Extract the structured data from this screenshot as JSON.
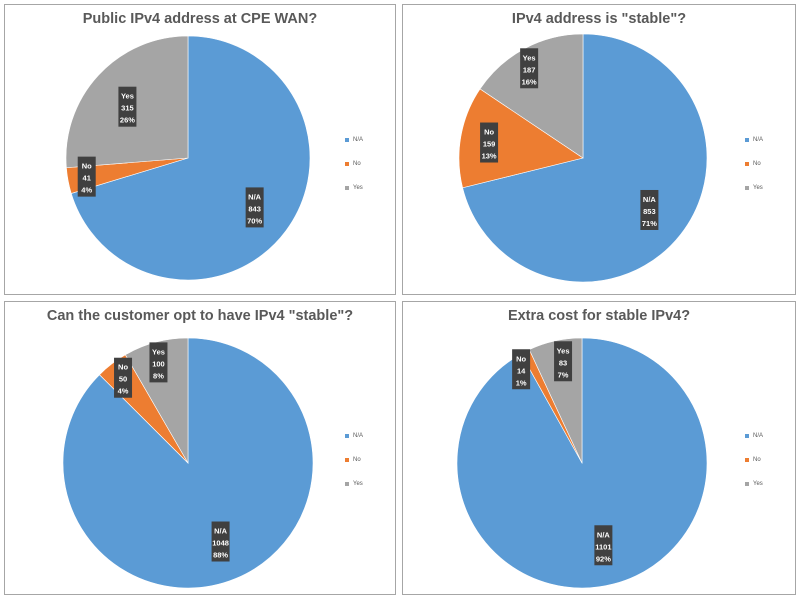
{
  "colors": {
    "N/A": "#5b9bd5",
    "No": "#ed7d31",
    "Yes": "#a5a5a5",
    "label_bg": "#404040",
    "label_text": "#ffffff"
  },
  "chart_data": [
    {
      "type": "pie",
      "title": "Public IPv4 address at CPE WAN?",
      "legend": "right",
      "categories": [
        "N/A",
        "No",
        "Yes"
      ],
      "values": [
        843,
        41,
        315
      ],
      "percents": [
        "70%",
        "4%",
        "26%"
      ],
      "value_labels": [
        "843",
        "41",
        "315"
      ]
    },
    {
      "type": "pie",
      "title": "IPv4 address is \"stable\"?",
      "legend": "right",
      "categories": [
        "N/A",
        "No",
        "Yes"
      ],
      "values": [
        853,
        159,
        187
      ],
      "percents": [
        "71%",
        "13%",
        "16%"
      ],
      "value_labels": [
        "853",
        "159",
        "187"
      ]
    },
    {
      "type": "pie",
      "title": "Can the customer opt to have IPv4 \"stable\"?",
      "legend": "right",
      "categories": [
        "N/A",
        "No",
        "Yes"
      ],
      "values": [
        1048,
        50,
        100
      ],
      "percents": [
        "88%",
        "4%",
        "8%"
      ],
      "value_labels": [
        "1048",
        "50",
        "100"
      ]
    },
    {
      "type": "pie",
      "title": "Extra cost for stable IPv4?",
      "legend": "right",
      "categories": [
        "N/A",
        "No",
        "Yes"
      ],
      "values": [
        1101,
        14,
        83
      ],
      "percents": [
        "92%",
        "1%",
        "7%"
      ],
      "value_labels": [
        "1101",
        "14",
        "83"
      ]
    }
  ]
}
